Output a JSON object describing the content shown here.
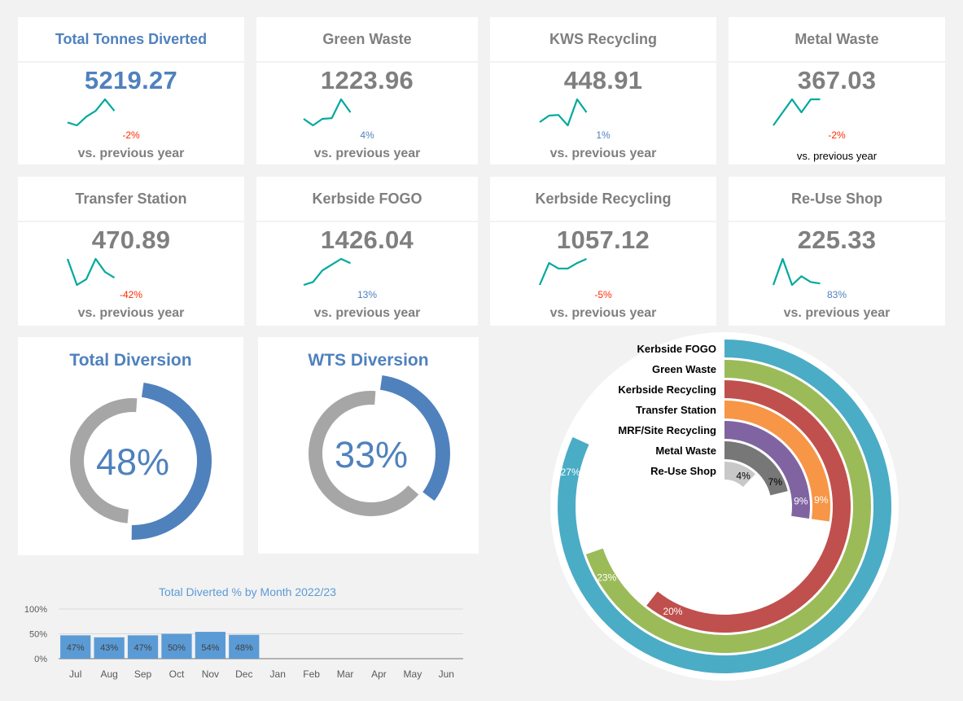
{
  "colors": {
    "accent": "#4f81bd",
    "muted_text": "#7f7f7f",
    "sparkline": "#00a99d",
    "negative": "#ff2a00",
    "positive": "#4f81bd",
    "donut_fill": "#4f81bd",
    "donut_rest": "#a6a6a6",
    "bar": "#5b9bd5"
  },
  "kpis": [
    {
      "title": "Total Tonnes Diverted",
      "value": "5219.27",
      "change": "-2%",
      "direction": "negative",
      "caption": "vs. previous year",
      "accent": true,
      "trend": [
        4,
        3,
        6,
        8,
        12,
        8
      ]
    },
    {
      "title": "Green Waste",
      "value": "1223.96",
      "change": "4%",
      "direction": "positive",
      "caption": "vs. previous year",
      "accent": false,
      "trend": [
        5,
        3,
        5,
        5.2,
        11,
        7
      ]
    },
    {
      "title": "KWS Recycling",
      "value": "448.91",
      "change": "1%",
      "direction": "positive",
      "caption": "vs. previous year",
      "accent": false,
      "trend": [
        4,
        6,
        6.2,
        3,
        11,
        7
      ]
    },
    {
      "title": "Metal Waste",
      "value": "367.03",
      "change": "-2%",
      "direction": "negative",
      "caption": "vs. previous year",
      "accent": false,
      "trend": [
        2,
        6,
        10,
        6,
        10,
        10
      ]
    },
    {
      "title": "Transfer Station",
      "value": "470.89",
      "change": "-42%",
      "direction": "negative",
      "caption": "vs. previous year",
      "accent": false,
      "trend": [
        11,
        2,
        4,
        11,
        6.5,
        4.5
      ]
    },
    {
      "title": "Kerbside FOGO",
      "value": "1426.04",
      "change": "13%",
      "direction": "positive",
      "caption": "vs. previous year",
      "accent": false,
      "trend": [
        2,
        3,
        7,
        9,
        11,
        9.5
      ]
    },
    {
      "title": "Kerbside Recycling",
      "value": "1057.12",
      "change": "-5%",
      "direction": "negative",
      "caption": "vs. previous year",
      "accent": false,
      "trend": [
        2,
        10,
        8,
        8,
        10,
        11.5
      ]
    },
    {
      "title": "Re-Use Shop",
      "value": "225.33",
      "change": "83%",
      "direction": "positive",
      "caption": "vs. previous year",
      "accent": false,
      "trend": [
        2,
        11,
        2,
        5,
        3,
        2.5
      ]
    }
  ],
  "donuts": [
    {
      "title": "Total Diversion",
      "label": "48%",
      "value": 0.48
    },
    {
      "title": "WTS Diversion",
      "label": "33%",
      "value": 0.33
    }
  ],
  "chart_data": [
    {
      "type": "bar",
      "title": "Total Diverted % by Month 2022/23",
      "categories": [
        "Jul",
        "Aug",
        "Sep",
        "Oct",
        "Nov",
        "Dec",
        "Jan",
        "Feb",
        "Mar",
        "Apr",
        "May",
        "Jun"
      ],
      "values": [
        47,
        43,
        47,
        50,
        54,
        48,
        null,
        null,
        null,
        null,
        null,
        null
      ],
      "data_labels": [
        "47%",
        "43%",
        "47%",
        "50%",
        "54%",
        "48%"
      ],
      "ylim": [
        0,
        100
      ],
      "yticks": [
        "0%",
        "50%",
        "100%"
      ],
      "ytick_values": [
        0,
        50,
        100
      ],
      "grid": true,
      "xlabel": "",
      "ylabel": ""
    },
    {
      "type": "pie",
      "subtype": "radial-bar",
      "title": "",
      "categories": [
        "Kerbside FOGO",
        "Green Waste",
        "Kerbside Recycling",
        "Transfer Station",
        "MRF/Site Recycling",
        "Metal Waste",
        "Re-Use Shop"
      ],
      "values": [
        27,
        23,
        20,
        9,
        9,
        7,
        4
      ],
      "data_labels": [
        "27%",
        "23%",
        "20%",
        "9%",
        "9%",
        "7%",
        "4%"
      ],
      "max": 33,
      "colors": [
        "#4bacc6",
        "#9bbb59",
        "#c0504d",
        "#f79646",
        "#8064a2",
        "#777777",
        "#c8c8c8"
      ],
      "label_colors": [
        "#ffffff",
        "#ffffff",
        "#ffffff",
        "#ffffff",
        "#ffffff",
        "#000000",
        "#000000"
      ]
    }
  ]
}
